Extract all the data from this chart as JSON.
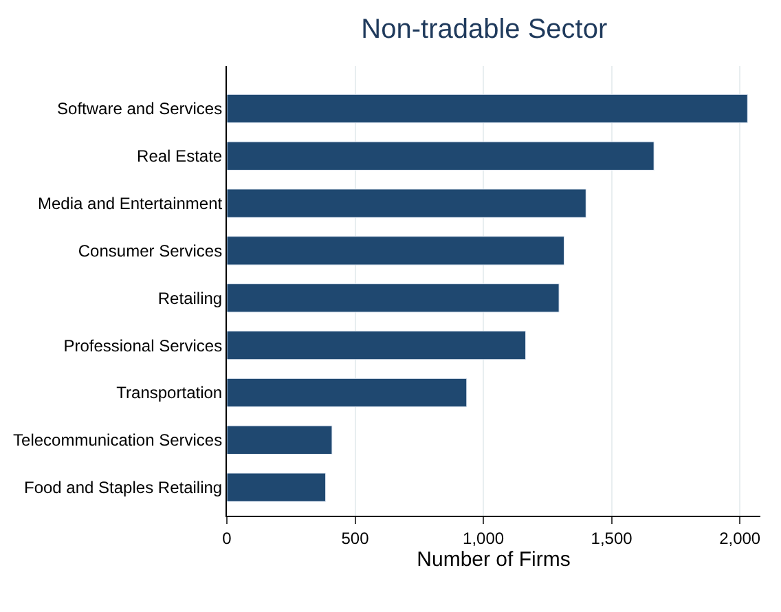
{
  "chart_data": {
    "type": "bar",
    "orientation": "horizontal",
    "title": "Non-tradable Sector",
    "xlabel": "Number of Firms",
    "categories": [
      "Software and Services",
      "Real Estate",
      "Media and Entertainment",
      "Consumer Services",
      "Retailing",
      "Professional Services",
      "Transportation",
      "Telecommunication Services",
      "Food and Staples Retailing"
    ],
    "values": [
      2030,
      1665,
      1400,
      1315,
      1295,
      1165,
      935,
      410,
      385
    ],
    "color": "#1f4870",
    "xlim": [
      0,
      2080
    ],
    "xticks": [
      0,
      500,
      {
        "value": 1000,
        "label": "1,000"
      },
      {
        "value": 1500,
        "label": "1,500"
      },
      {
        "value": 2000,
        "label": "2,000"
      }
    ],
    "grid": "x"
  }
}
